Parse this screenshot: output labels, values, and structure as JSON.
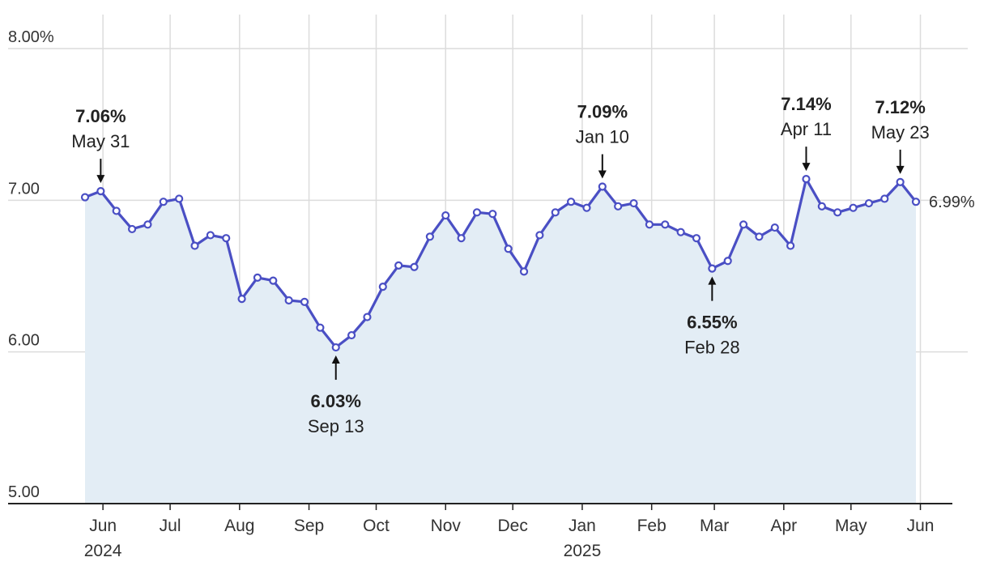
{
  "chart_data": {
    "type": "line",
    "title": "",
    "xlabel": "",
    "ylabel": "",
    "ylim": [
      5.0,
      8.0
    ],
    "y_ticks": [
      "5.00",
      "6.00",
      "7.00",
      "8.00%"
    ],
    "x_ticks": [
      {
        "label": "Jun",
        "sub": "2024",
        "date": "2024-06-01"
      },
      {
        "label": "Jul",
        "sub": "",
        "date": "2024-07-01"
      },
      {
        "label": "Aug",
        "sub": "",
        "date": "2024-08-01"
      },
      {
        "label": "Sep",
        "sub": "",
        "date": "2024-09-01"
      },
      {
        "label": "Oct",
        "sub": "",
        "date": "2024-10-01"
      },
      {
        "label": "Nov",
        "sub": "",
        "date": "2024-11-01"
      },
      {
        "label": "Dec",
        "sub": "",
        "date": "2024-12-01"
      },
      {
        "label": "Jan",
        "sub": "2025",
        "date": "2025-01-01"
      },
      {
        "label": "Feb",
        "sub": "",
        "date": "2025-02-01"
      },
      {
        "label": "Mar",
        "sub": "",
        "date": "2025-03-01"
      },
      {
        "label": "Apr",
        "sub": "",
        "date": "2025-04-01"
      },
      {
        "label": "May",
        "sub": "",
        "date": "2025-05-01"
      },
      {
        "label": "Jun",
        "sub": "",
        "date": "2025-06-01"
      }
    ],
    "grid": true,
    "colors": {
      "line": "#4a4fc4",
      "fill": "#e3edf5",
      "grid": "#dcdcdc",
      "axis": "#222222"
    },
    "series": [
      {
        "x": [
          "2024-05-24",
          "2024-05-31",
          "2024-06-07",
          "2024-06-14",
          "2024-06-21",
          "2024-06-28",
          "2024-07-05",
          "2024-07-12",
          "2024-07-19",
          "2024-07-26",
          "2024-08-02",
          "2024-08-09",
          "2024-08-16",
          "2024-08-23",
          "2024-08-30",
          "2024-09-06",
          "2024-09-13",
          "2024-09-20",
          "2024-09-27",
          "2024-10-04",
          "2024-10-11",
          "2024-10-18",
          "2024-10-25",
          "2024-11-01",
          "2024-11-08",
          "2024-11-15",
          "2024-11-22",
          "2024-11-29",
          "2024-12-06",
          "2024-12-13",
          "2024-12-20",
          "2024-12-27",
          "2025-01-03",
          "2025-01-10",
          "2025-01-17",
          "2025-01-24",
          "2025-01-31",
          "2025-02-07",
          "2025-02-14",
          "2025-02-21",
          "2025-02-28",
          "2025-03-07",
          "2025-03-14",
          "2025-03-21",
          "2025-03-28",
          "2025-04-04",
          "2025-04-11",
          "2025-04-18",
          "2025-04-25",
          "2025-05-02",
          "2025-05-09",
          "2025-05-16",
          "2025-05-23",
          "2025-05-30"
        ],
        "values": [
          7.02,
          7.06,
          6.93,
          6.81,
          6.84,
          6.99,
          7.01,
          6.7,
          6.77,
          6.75,
          6.35,
          6.49,
          6.47,
          6.34,
          6.33,
          6.16,
          6.03,
          6.11,
          6.23,
          6.43,
          6.57,
          6.56,
          6.76,
          6.9,
          6.75,
          6.92,
          6.91,
          6.68,
          6.53,
          6.77,
          6.92,
          6.99,
          6.95,
          7.09,
          6.96,
          6.98,
          6.84,
          6.84,
          6.79,
          6.75,
          6.55,
          6.6,
          6.84,
          6.76,
          6.82,
          6.7,
          7.14,
          6.96,
          6.92,
          6.95,
          6.98,
          7.01,
          7.12,
          6.99
        ]
      }
    ],
    "annotations": [
      {
        "value_label": "7.06%",
        "date_label": "May 31",
        "date": "2024-05-31",
        "y": 7.06,
        "side": "above"
      },
      {
        "value_label": "6.03%",
        "date_label": "Sep 13",
        "date": "2024-09-13",
        "y": 6.03,
        "side": "below"
      },
      {
        "value_label": "7.09%",
        "date_label": "Jan 10",
        "date": "2025-01-10",
        "y": 7.09,
        "side": "above"
      },
      {
        "value_label": "6.55%",
        "date_label": "Feb 28",
        "date": "2025-02-28",
        "y": 6.55,
        "side": "below"
      },
      {
        "value_label": "7.14%",
        "date_label": "Apr 11",
        "date": "2025-04-11",
        "y": 7.14,
        "side": "above"
      },
      {
        "value_label": "7.12%",
        "date_label": "May 23",
        "date": "2025-05-23",
        "y": 7.12,
        "side": "above"
      }
    ],
    "end_label": "6.99%"
  }
}
